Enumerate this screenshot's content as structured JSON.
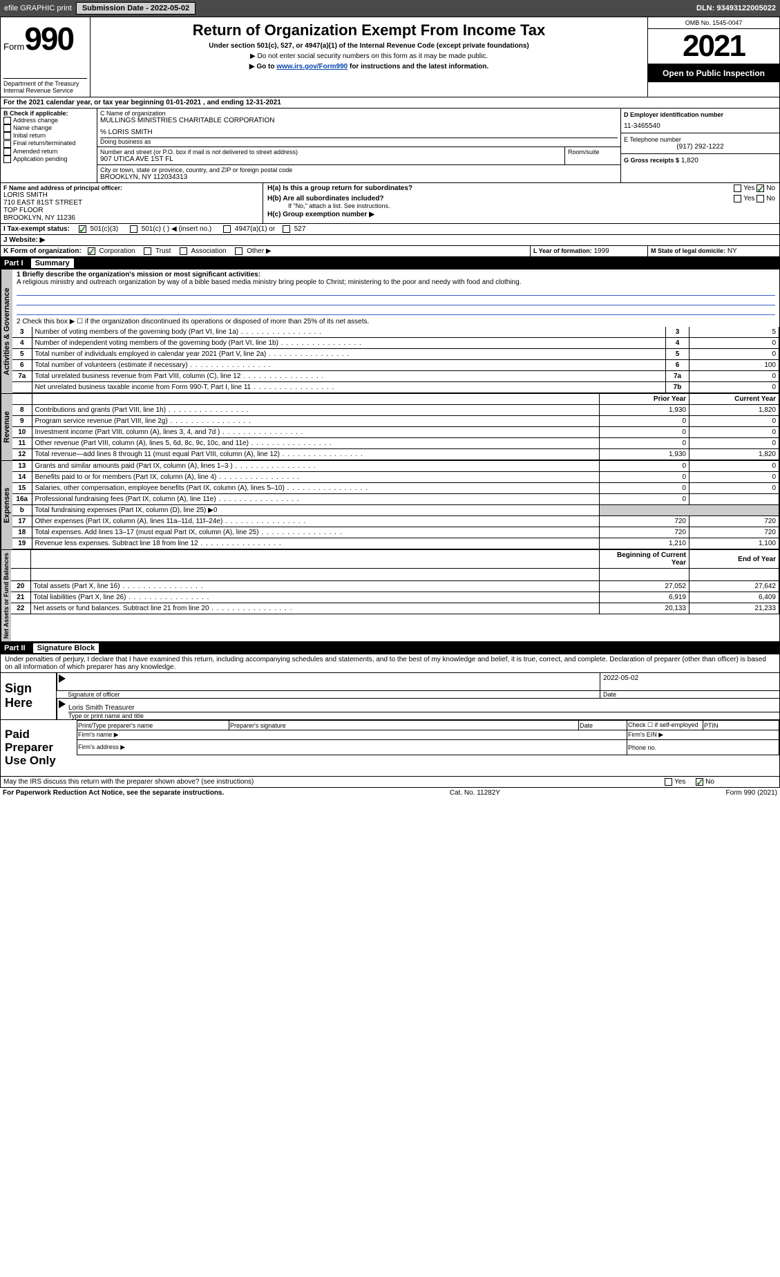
{
  "topbar": {
    "efile": "efile GRAPHIC print",
    "subdate_label": "Submission Date - 2022-05-02",
    "dln_label": "DLN: 93493122005022"
  },
  "header": {
    "form_word": "Form",
    "form_num": "990",
    "title": "Return of Organization Exempt From Income Tax",
    "subtitle": "Under section 501(c), 527, or 4947(a)(1) of the Internal Revenue Code (except private foundations)",
    "note1": "▶ Do not enter social security numbers on this form as it may be made public.",
    "note2_pre": "▶ Go to ",
    "note2_link": "www.irs.gov/Form990",
    "note2_post": " for instructions and the latest information.",
    "dept": "Department of the Treasury\nInternal Revenue Service",
    "omb": "OMB No. 1545-0047",
    "year": "2021",
    "pub": "Open to Public Inspection"
  },
  "A": {
    "text": "For the 2021 calendar year, or tax year beginning 01-01-2021    , and ending 12-31-2021"
  },
  "B": {
    "label": "B Check if applicable:",
    "items": [
      "Address change",
      "Name change",
      "Initial return",
      "Final return/terminated",
      "Amended return",
      "Application pending"
    ]
  },
  "C": {
    "name_label": "C Name of organization",
    "name": "MULLINGS MINISTRIES CHARITABLE CORPORATION",
    "care": "% LORIS SMITH",
    "dba_label": "Doing business as",
    "street_label": "Number and street (or P.O. box if mail is not delivered to street address)",
    "room_label": "Room/suite",
    "street": "907 UTICA AVE 1ST FL",
    "city_label": "City or town, state or province, country, and ZIP or foreign postal code",
    "city": "BROOKLYN, NY  112034313"
  },
  "D": {
    "label": "D Employer identification number",
    "val": "11-3465540"
  },
  "E": {
    "label": "E Telephone number",
    "val": "(917) 292-1222"
  },
  "G": {
    "label": "G Gross receipts $",
    "val": "1,820"
  },
  "F": {
    "label": "F  Name and address of principal officer:",
    "lines": [
      "LORIS SMITH",
      "710 EAST 81ST STREET",
      "TOP FLOOR",
      "BROOKLYN, NY  11236"
    ]
  },
  "H": {
    "ha": "H(a)  Is this a group return for subordinates?",
    "hb": "H(b)  Are all subordinates included?",
    "hb_note": "If \"No,\" attach a list. See instructions.",
    "hc": "H(c)  Group exemption number ▶",
    "yes": "Yes",
    "no": "No"
  },
  "I": {
    "label": "I  Tax-exempt status:",
    "opts": [
      "501(c)(3)",
      "501(c) (  ) ◀ (insert no.)",
      "4947(a)(1) or",
      "527"
    ]
  },
  "J": {
    "label": "J  Website: ▶"
  },
  "K": {
    "label": "K Form of organization:",
    "opts": [
      "Corporation",
      "Trust",
      "Association",
      "Other ▶"
    ]
  },
  "L": {
    "label": "L Year of formation:",
    "val": "1999"
  },
  "M": {
    "label": "M State of legal domicile:",
    "val": "NY"
  },
  "part1": {
    "head": "Part I",
    "title": "Summary",
    "q1": "1  Briefly describe the organization's mission or most significant activities:",
    "mission": "A religious ministry and outreach organization by way of a bible based media ministry bring people to Christ; ministering to the poor and needy with food and clothing.",
    "q2": "2  Check this box ▶ ☐ if the organization discontinued its operations or disposed of more than 25% of its net assets.",
    "rows_gov": [
      {
        "n": "3",
        "t": "Number of voting members of the governing body (Part VI, line 1a)",
        "box": "3",
        "v": "5"
      },
      {
        "n": "4",
        "t": "Number of independent voting members of the governing body (Part VI, line 1b)",
        "box": "4",
        "v": "0"
      },
      {
        "n": "5",
        "t": "Total number of individuals employed in calendar year 2021 (Part V, line 2a)",
        "box": "5",
        "v": "0"
      },
      {
        "n": "6",
        "t": "Total number of volunteers (estimate if necessary)",
        "box": "6",
        "v": "100"
      },
      {
        "n": "7a",
        "t": "Total unrelated business revenue from Part VIII, column (C), line 12",
        "box": "7a",
        "v": "0"
      },
      {
        "n": "",
        "t": "Net unrelated business taxable income from Form 990-T, Part I, line 11",
        "box": "7b",
        "v": "0"
      }
    ],
    "col_prior": "Prior Year",
    "col_curr": "Current Year",
    "rows_rev": [
      {
        "n": "8",
        "t": "Contributions and grants (Part VIII, line 1h)",
        "p": "1,930",
        "c": "1,820"
      },
      {
        "n": "9",
        "t": "Program service revenue (Part VIII, line 2g)",
        "p": "0",
        "c": "0"
      },
      {
        "n": "10",
        "t": "Investment income (Part VIII, column (A), lines 3, 4, and 7d )",
        "p": "0",
        "c": "0"
      },
      {
        "n": "11",
        "t": "Other revenue (Part VIII, column (A), lines 5, 6d, 8c, 9c, 10c, and 11e)",
        "p": "0",
        "c": "0"
      },
      {
        "n": "12",
        "t": "Total revenue—add lines 8 through 11 (must equal Part VIII, column (A), line 12)",
        "p": "1,930",
        "c": "1,820"
      }
    ],
    "rows_exp": [
      {
        "n": "13",
        "t": "Grants and similar amounts paid (Part IX, column (A), lines 1–3 )",
        "p": "0",
        "c": "0"
      },
      {
        "n": "14",
        "t": "Benefits paid to or for members (Part IX, column (A), line 4)",
        "p": "0",
        "c": "0"
      },
      {
        "n": "15",
        "t": "Salaries, other compensation, employee benefits (Part IX, column (A), lines 5–10)",
        "p": "0",
        "c": "0"
      },
      {
        "n": "16a",
        "t": "Professional fundraising fees (Part IX, column (A), line 11e)",
        "p": "0",
        "c": ""
      },
      {
        "n": "b",
        "t": "Total fundraising expenses (Part IX, column (D), line 25) ▶0",
        "p": "",
        "c": ""
      },
      {
        "n": "17",
        "t": "Other expenses (Part IX, column (A), lines 11a–11d, 11f–24e)",
        "p": "720",
        "c": "720"
      },
      {
        "n": "18",
        "t": "Total expenses. Add lines 13–17 (must equal Part IX, column (A), line 25)",
        "p": "720",
        "c": "720"
      },
      {
        "n": "19",
        "t": "Revenue less expenses. Subtract line 18 from line 12",
        "p": "1,210",
        "c": "1,100"
      }
    ],
    "col_beg": "Beginning of Current Year",
    "col_end": "End of Year",
    "rows_net": [
      {
        "n": "20",
        "t": "Total assets (Part X, line 16)",
        "p": "27,052",
        "c": "27,642"
      },
      {
        "n": "21",
        "t": "Total liabilities (Part X, line 26)",
        "p": "6,919",
        "c": "6,409"
      },
      {
        "n": "22",
        "t": "Net assets or fund balances. Subtract line 21 from line 20",
        "p": "20,133",
        "c": "21,233"
      }
    ],
    "vlabels": [
      "Activities & Governance",
      "Revenue",
      "Expenses",
      "Net Assets or Fund Balances"
    ]
  },
  "part2": {
    "head": "Part II",
    "title": "Signature Block",
    "decl": "Under penalties of perjury, I declare that I have examined this return, including accompanying schedules and statements, and to the best of my knowledge and belief, it is true, correct, and complete. Declaration of preparer (other than officer) is based on all information of which preparer has any knowledge.",
    "sign_here": "Sign Here",
    "sig_officer": "Signature of officer",
    "date": "Date",
    "date_val": "2022-05-02",
    "name_title": "Loris Smith  Treasurer",
    "type_name": "Type or print name and title",
    "paid": "Paid Preparer Use Only",
    "pp_name": "Print/Type preparer's name",
    "pp_sig": "Preparer's signature",
    "pp_date": "Date",
    "pp_check": "Check ☐ if self-employed",
    "pp_ptin": "PTIN",
    "firm_name": "Firm's name  ▶",
    "firm_ein": "Firm's EIN ▶",
    "firm_addr": "Firm's address ▶",
    "phone": "Phone no.",
    "discuss": "May the IRS discuss this return with the preparer shown above? (see instructions)",
    "yes": "Yes",
    "no": "No"
  },
  "footer": {
    "pra": "For Paperwork Reduction Act Notice, see the separate instructions.",
    "cat": "Cat. No. 11282Y",
    "form": "Form 990 (2021)"
  }
}
